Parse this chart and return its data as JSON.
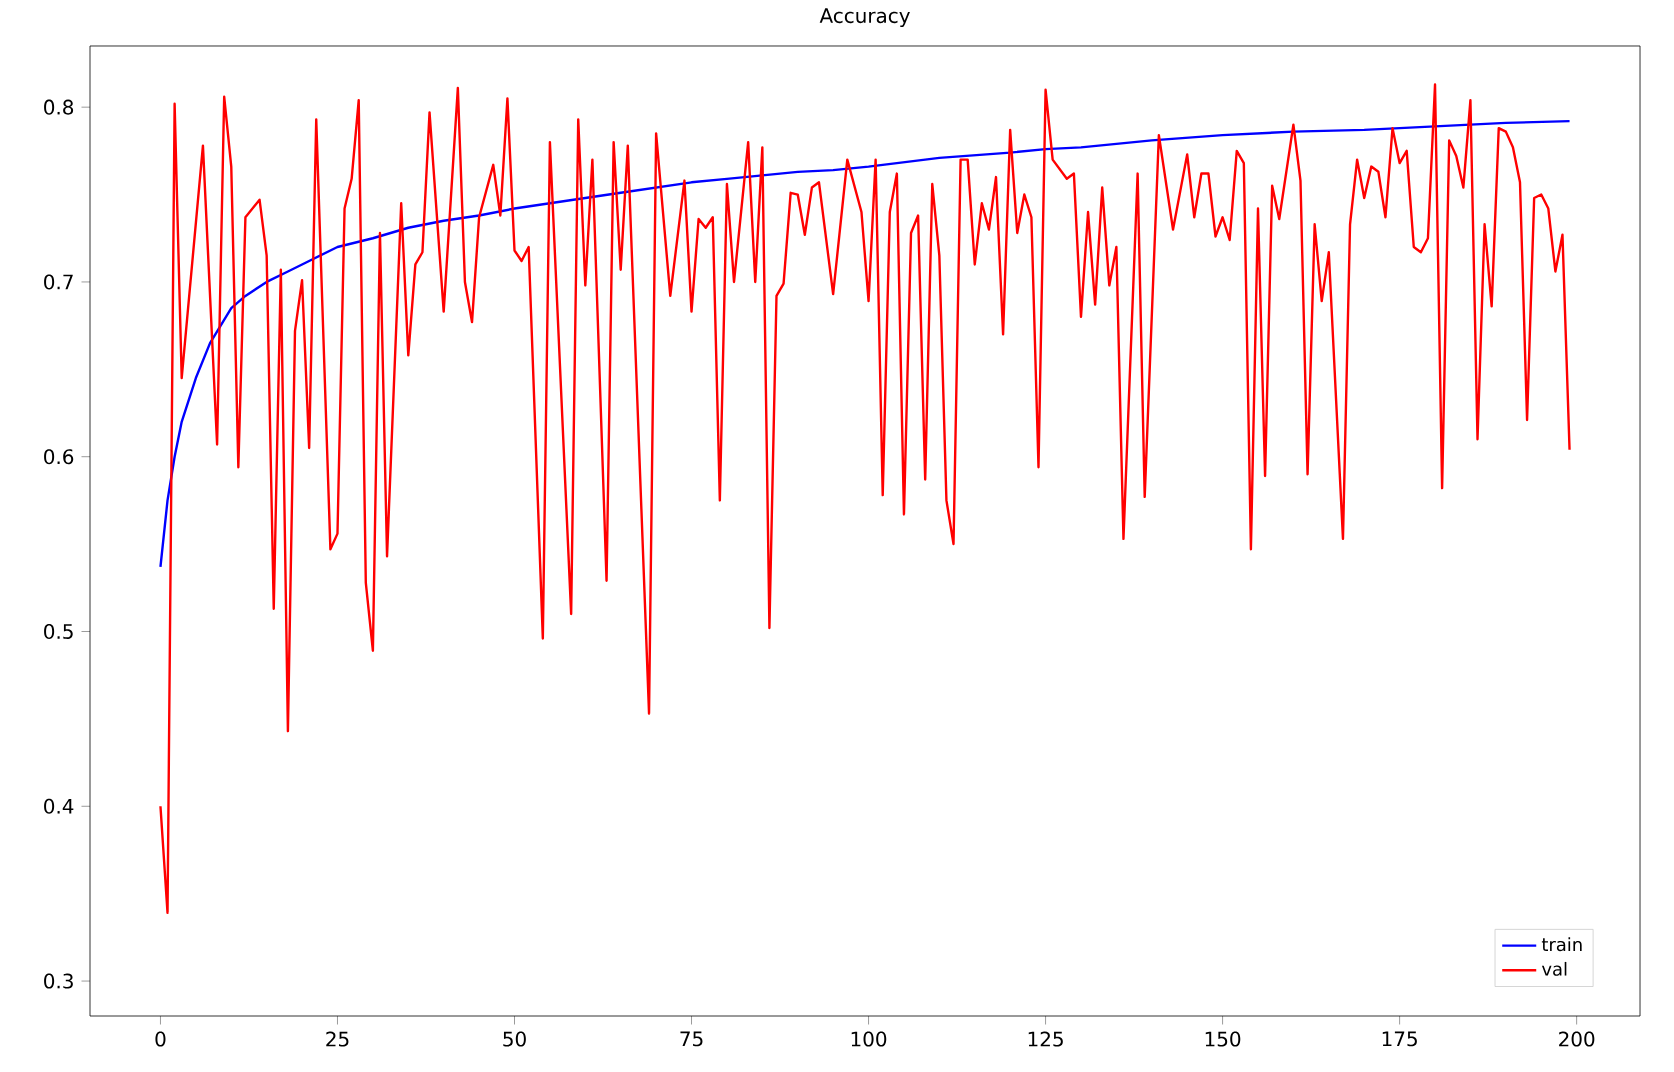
{
  "chart_data": {
    "type": "line",
    "title": "Accuracy",
    "xlim": [
      -9.95,
      208.95
    ],
    "ylim": [
      0.28,
      0.835
    ],
    "xticks": [
      0,
      25,
      50,
      75,
      100,
      125,
      150,
      175,
      200
    ],
    "yticks": [
      0.3,
      0.4,
      0.5,
      0.6,
      0.7,
      0.8
    ],
    "legend": "bottom right",
    "grid": false,
    "series": [
      {
        "name": "train",
        "color": "#0000ff",
        "x": [
          0,
          1,
          2,
          3,
          5,
          7,
          10,
          12,
          15,
          18,
          20,
          25,
          30,
          35,
          40,
          45,
          50,
          55,
          60,
          65,
          70,
          75,
          80,
          85,
          90,
          95,
          100,
          110,
          120,
          125,
          130,
          140,
          150,
          160,
          170,
          175,
          180,
          190,
          199
        ],
        "values": [
          0.537,
          0.575,
          0.6,
          0.62,
          0.645,
          0.665,
          0.685,
          0.692,
          0.7,
          0.706,
          0.71,
          0.72,
          0.725,
          0.731,
          0.735,
          0.738,
          0.742,
          0.745,
          0.748,
          0.751,
          0.754,
          0.757,
          0.759,
          0.761,
          0.763,
          0.764,
          0.766,
          0.771,
          0.774,
          0.776,
          0.777,
          0.781,
          0.784,
          0.786,
          0.787,
          0.788,
          0.789,
          0.791,
          0.792
        ]
      },
      {
        "name": "val",
        "color": "#ff0000",
        "x": [
          0,
          1,
          2,
          3,
          6,
          8,
          9,
          10,
          11,
          12,
          14,
          15,
          16,
          17,
          18,
          19,
          20,
          21,
          22,
          24,
          25,
          26,
          27,
          28,
          29,
          30,
          31,
          32,
          34,
          35,
          36,
          37,
          38,
          40,
          42,
          43,
          44,
          45,
          47,
          48,
          49,
          50,
          51,
          52,
          54,
          55,
          58,
          59,
          60,
          61,
          63,
          64,
          65,
          66,
          69,
          70,
          72,
          74,
          75,
          76,
          77,
          78,
          79,
          80,
          81,
          83,
          84,
          85,
          86,
          87,
          88,
          89,
          90,
          91,
          92,
          93,
          95,
          97,
          99,
          100,
          101,
          102,
          103,
          104,
          105,
          106,
          107,
          108,
          109,
          110,
          111,
          112,
          113,
          114,
          115,
          116,
          117,
          118,
          119,
          120,
          121,
          122,
          123,
          124,
          125,
          126,
          128,
          129,
          130,
          131,
          132,
          133,
          134,
          135,
          136,
          138,
          139,
          141,
          143,
          145,
          146,
          147,
          148,
          149,
          150,
          151,
          152,
          153,
          154,
          155,
          156,
          157,
          158,
          160,
          161,
          162,
          163,
          164,
          165,
          167,
          168,
          169,
          170,
          171,
          172,
          173,
          174,
          175,
          176,
          177,
          178,
          179,
          180,
          181,
          182,
          183,
          184,
          185,
          186,
          187,
          188,
          189,
          190,
          191,
          192,
          193,
          194,
          195,
          196,
          197,
          198,
          199
        ],
        "values": [
          0.4,
          0.339,
          0.802,
          0.645,
          0.778,
          0.607,
          0.806,
          0.766,
          0.594,
          0.737,
          0.747,
          0.715,
          0.513,
          0.707,
          0.443,
          0.672,
          0.701,
          0.605,
          0.793,
          0.547,
          0.556,
          0.742,
          0.759,
          0.804,
          0.528,
          0.489,
          0.728,
          0.543,
          0.745,
          0.658,
          0.71,
          0.717,
          0.797,
          0.683,
          0.811,
          0.7,
          0.677,
          0.737,
          0.767,
          0.738,
          0.805,
          0.718,
          0.712,
          0.72,
          0.496,
          0.78,
          0.51,
          0.793,
          0.698,
          0.77,
          0.529,
          0.78,
          0.707,
          0.778,
          0.453,
          0.785,
          0.692,
          0.758,
          0.683,
          0.736,
          0.731,
          0.737,
          0.575,
          0.756,
          0.7,
          0.78,
          0.7,
          0.777,
          0.502,
          0.692,
          0.699,
          0.751,
          0.75,
          0.727,
          0.754,
          0.757,
          0.693,
          0.77,
          0.74,
          0.689,
          0.77,
          0.578,
          0.74,
          0.762,
          0.567,
          0.728,
          0.738,
          0.587,
          0.756,
          0.715,
          0.575,
          0.55,
          0.77,
          0.77,
          0.71,
          0.745,
          0.73,
          0.76,
          0.67,
          0.787,
          0.728,
          0.75,
          0.737,
          0.594,
          0.81,
          0.77,
          0.759,
          0.762,
          0.68,
          0.74,
          0.687,
          0.754,
          0.698,
          0.72,
          0.553,
          0.762,
          0.577,
          0.784,
          0.73,
          0.773,
          0.737,
          0.762,
          0.762,
          0.726,
          0.737,
          0.724,
          0.775,
          0.768,
          0.547,
          0.742,
          0.589,
          0.755,
          0.736,
          0.79,
          0.758,
          0.59,
          0.733,
          0.689,
          0.717,
          0.553,
          0.733,
          0.77,
          0.748,
          0.766,
          0.763,
          0.737,
          0.788,
          0.768,
          0.775,
          0.72,
          0.717,
          0.725,
          0.813,
          0.582,
          0.781,
          0.772,
          0.754,
          0.804,
          0.61,
          0.733,
          0.686,
          0.788,
          0.786,
          0.777,
          0.757,
          0.621,
          0.748,
          0.75,
          0.742,
          0.706,
          0.727,
          0.604
        ]
      }
    ]
  }
}
